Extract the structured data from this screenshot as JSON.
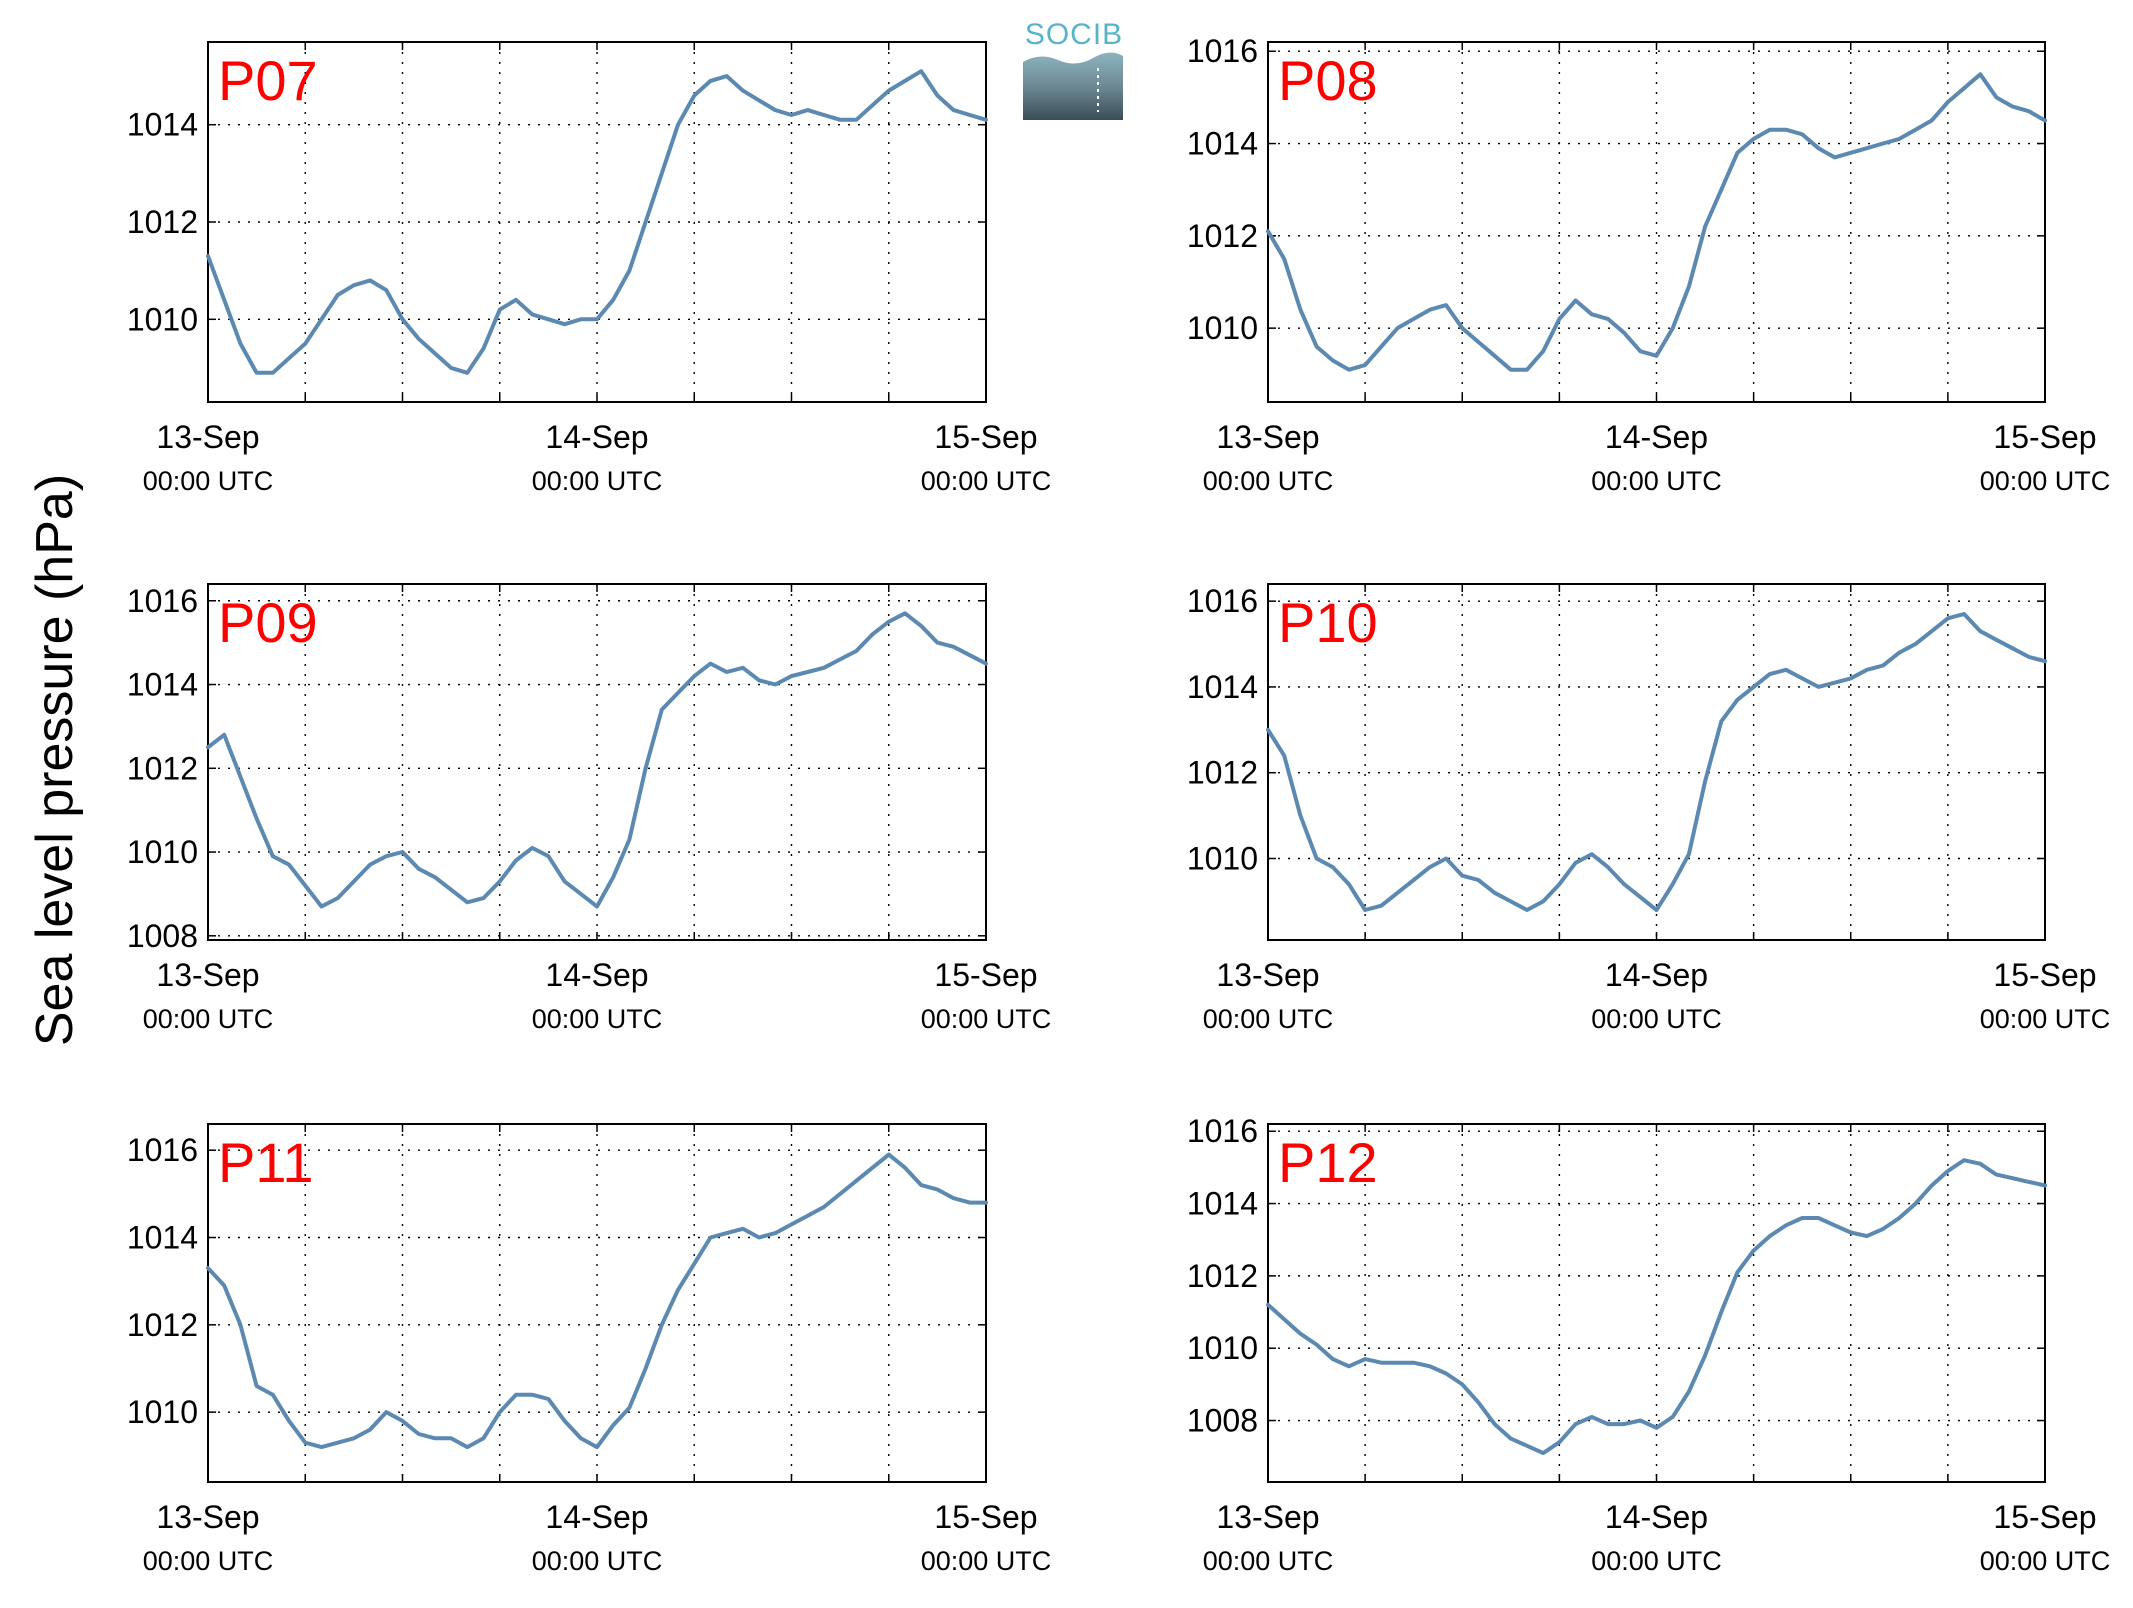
{
  "figure": {
    "ylabel": "Sea level pressure (hPa)",
    "logo_text": "SOCIB",
    "line_color": "#5b89b1",
    "station_label_color": "#ff0000",
    "grid": "dotted"
  },
  "chart_data": [
    {
      "type": "line",
      "station": "P07",
      "ylabel": "Sea level pressure (hPa)",
      "ylim": [
        1008.3,
        1015.7
      ],
      "yticks": [
        1010,
        1012,
        1014
      ],
      "xticks": [
        {
          "x": 0,
          "date": "13-Sep",
          "time": "00:00 UTC"
        },
        {
          "x": 24,
          "date": "14-Sep",
          "time": "00:00 UTC"
        },
        {
          "x": 48,
          "date": "15-Sep",
          "time": "00:00 UTC"
        }
      ],
      "xlim": [
        0,
        48
      ],
      "series": [
        {
          "x": [
            0,
            1,
            2,
            3,
            4,
            5,
            6,
            7,
            8,
            9,
            10,
            11,
            12,
            13,
            14,
            15,
            16,
            17,
            18,
            19,
            20,
            21,
            22,
            23,
            24,
            25,
            26,
            27,
            28,
            29,
            30,
            31,
            32,
            33,
            34,
            35,
            36,
            37,
            38,
            39,
            40,
            41,
            42,
            43,
            44,
            45,
            46,
            47,
            48
          ],
          "y": [
            1011.3,
            1010.4,
            1009.5,
            1008.9,
            1008.9,
            1009.2,
            1009.5,
            1010,
            1010.5,
            1010.7,
            1010.8,
            1010.6,
            1010,
            1009.6,
            1009.3,
            1009.0,
            1008.9,
            1009.4,
            1010.2,
            1010.4,
            1010.1,
            1010.0,
            1009.9,
            1010.0,
            1010.0,
            1010.4,
            1011.0,
            1012.0,
            1013.0,
            1014.0,
            1014.6,
            1014.9,
            1015.0,
            1014.7,
            1014.5,
            1014.3,
            1014.2,
            1014.3,
            1014.2,
            1014.1,
            1014.1,
            1014.4,
            1014.7,
            1014.9,
            1015.1,
            1014.6,
            1014.3,
            1014.2,
            1014.1
          ]
        }
      ]
    },
    {
      "type": "line",
      "station": "P08",
      "ylabel": "Sea level pressure (hPa)",
      "ylim": [
        1008.4,
        1016.2
      ],
      "yticks": [
        1010,
        1012,
        1014,
        1016
      ],
      "xticks": [
        {
          "x": 0,
          "date": "13-Sep",
          "time": "00:00 UTC"
        },
        {
          "x": 24,
          "date": "14-Sep",
          "time": "00:00 UTC"
        },
        {
          "x": 48,
          "date": "15-Sep",
          "time": "00:00 UTC"
        }
      ],
      "xlim": [
        0,
        48
      ],
      "series": [
        {
          "x": [
            0,
            1,
            2,
            3,
            4,
            5,
            6,
            7,
            8,
            9,
            10,
            11,
            12,
            13,
            14,
            15,
            16,
            17,
            18,
            19,
            20,
            21,
            22,
            23,
            24,
            25,
            26,
            27,
            28,
            29,
            30,
            31,
            32,
            33,
            34,
            35,
            36,
            37,
            38,
            39,
            40,
            41,
            42,
            43,
            44,
            45,
            46,
            47,
            48
          ],
          "y": [
            1012.1,
            1011.5,
            1010.4,
            1009.6,
            1009.3,
            1009.1,
            1009.2,
            1009.6,
            1010.0,
            1010.2,
            1010.4,
            1010.5,
            1010.0,
            1009.7,
            1009.4,
            1009.1,
            1009.1,
            1009.5,
            1010.2,
            1010.6,
            1010.3,
            1010.2,
            1009.9,
            1009.5,
            1009.4,
            1010.0,
            1010.9,
            1012.2,
            1013.0,
            1013.8,
            1014.1,
            1014.3,
            1014.3,
            1014.2,
            1013.9,
            1013.7,
            1013.8,
            1013.9,
            1014.0,
            1014.1,
            1014.3,
            1014.5,
            1014.9,
            1015.2,
            1015.5,
            1015.0,
            1014.8,
            1014.7,
            1014.5
          ]
        }
      ]
    },
    {
      "type": "line",
      "station": "P09",
      "ylabel": "Sea level pressure (hPa)",
      "ylim": [
        1007.9,
        1016.4
      ],
      "yticks": [
        1008,
        1010,
        1012,
        1014,
        1016
      ],
      "xticks": [
        {
          "x": 0,
          "date": "13-Sep",
          "time": "00:00 UTC"
        },
        {
          "x": 24,
          "date": "14-Sep",
          "time": "00:00 UTC"
        },
        {
          "x": 48,
          "date": "15-Sep",
          "time": "00:00 UTC"
        }
      ],
      "xlim": [
        0,
        48
      ],
      "series": [
        {
          "x": [
            0,
            1,
            2,
            3,
            4,
            5,
            6,
            7,
            8,
            9,
            10,
            11,
            12,
            13,
            14,
            15,
            16,
            17,
            18,
            19,
            20,
            21,
            22,
            23,
            24,
            25,
            26,
            27,
            28,
            29,
            30,
            31,
            32,
            33,
            34,
            35,
            36,
            37,
            38,
            39,
            40,
            41,
            42,
            43,
            44,
            45,
            46,
            47,
            48
          ],
          "y": [
            1012.5,
            1012.8,
            1011.8,
            1010.8,
            1009.9,
            1009.7,
            1009.2,
            1008.7,
            1008.9,
            1009.3,
            1009.7,
            1009.9,
            1010.0,
            1009.6,
            1009.4,
            1009.1,
            1008.8,
            1008.9,
            1009.3,
            1009.8,
            1010.1,
            1009.9,
            1009.3,
            1009.0,
            1008.7,
            1009.4,
            1010.3,
            1012.0,
            1013.4,
            1013.8,
            1014.2,
            1014.5,
            1014.3,
            1014.4,
            1014.1,
            1014.0,
            1014.2,
            1014.3,
            1014.4,
            1014.6,
            1014.8,
            1015.2,
            1015.5,
            1015.7,
            1015.4,
            1015.0,
            1014.9,
            1014.7,
            1014.5
          ]
        }
      ]
    },
    {
      "type": "line",
      "station": "P10",
      "ylabel": "Sea level pressure (hPa)",
      "ylim": [
        1008.1,
        1016.4
      ],
      "yticks": [
        1010,
        1012,
        1014,
        1016
      ],
      "xticks": [
        {
          "x": 0,
          "date": "13-Sep",
          "time": "00:00 UTC"
        },
        {
          "x": 24,
          "date": "14-Sep",
          "time": "00:00 UTC"
        },
        {
          "x": 48,
          "date": "15-Sep",
          "time": "00:00 UTC"
        }
      ],
      "xlim": [
        0,
        48
      ],
      "series": [
        {
          "x": [
            0,
            1,
            2,
            3,
            4,
            5,
            6,
            7,
            8,
            9,
            10,
            11,
            12,
            13,
            14,
            15,
            16,
            17,
            18,
            19,
            20,
            21,
            22,
            23,
            24,
            25,
            26,
            27,
            28,
            29,
            30,
            31,
            32,
            33,
            34,
            35,
            36,
            37,
            38,
            39,
            40,
            41,
            42,
            43,
            44,
            45,
            46,
            47,
            48
          ],
          "y": [
            1013.0,
            1012.4,
            1011.0,
            1010.0,
            1009.8,
            1009.4,
            1008.8,
            1008.9,
            1009.2,
            1009.5,
            1009.8,
            1010.0,
            1009.6,
            1009.5,
            1009.2,
            1009.0,
            1008.8,
            1009.0,
            1009.4,
            1009.9,
            1010.1,
            1009.8,
            1009.4,
            1009.1,
            1008.8,
            1009.4,
            1010.1,
            1011.8,
            1013.2,
            1013.7,
            1014.0,
            1014.3,
            1014.4,
            1014.2,
            1014.0,
            1014.1,
            1014.2,
            1014.4,
            1014.5,
            1014.8,
            1015.0,
            1015.3,
            1015.6,
            1015.7,
            1015.3,
            1015.1,
            1014.9,
            1014.7,
            1014.6
          ]
        }
      ]
    },
    {
      "type": "line",
      "station": "P11",
      "ylabel": "Sea level pressure (hPa)",
      "ylim": [
        1008.4,
        1016.6
      ],
      "yticks": [
        1010,
        1012,
        1014,
        1016
      ],
      "xticks": [
        {
          "x": 0,
          "date": "13-Sep",
          "time": "00:00 UTC"
        },
        {
          "x": 24,
          "date": "14-Sep",
          "time": "00:00 UTC"
        },
        {
          "x": 48,
          "date": "15-Sep",
          "time": "00:00 UTC"
        }
      ],
      "xlim": [
        0,
        48
      ],
      "series": [
        {
          "x": [
            0,
            1,
            2,
            3,
            4,
            5,
            6,
            7,
            8,
            9,
            10,
            11,
            12,
            13,
            14,
            15,
            16,
            17,
            18,
            19,
            20,
            21,
            22,
            23,
            24,
            25,
            26,
            27,
            28,
            29,
            30,
            31,
            32,
            33,
            34,
            35,
            36,
            37,
            38,
            39,
            40,
            41,
            42,
            43,
            44,
            45,
            46,
            47,
            48
          ],
          "y": [
            1013.3,
            1012.9,
            1012.0,
            1010.6,
            1010.4,
            1009.8,
            1009.3,
            1009.2,
            1009.3,
            1009.4,
            1009.6,
            1010.0,
            1009.8,
            1009.5,
            1009.4,
            1009.4,
            1009.2,
            1009.4,
            1010.0,
            1010.4,
            1010.4,
            1010.3,
            1009.8,
            1009.4,
            1009.2,
            1009.7,
            1010.1,
            1011.0,
            1012.0,
            1012.8,
            1013.4,
            1014.0,
            1014.1,
            1014.2,
            1014.0,
            1014.1,
            1014.3,
            1014.5,
            1014.7,
            1015.0,
            1015.3,
            1015.6,
            1015.9,
            1015.6,
            1015.2,
            1015.1,
            1014.9,
            1014.8,
            1014.8
          ]
        }
      ]
    },
    {
      "type": "line",
      "station": "P12",
      "ylabel": "Sea level pressure (hPa)",
      "ylim": [
        1006.3,
        1016.2
      ],
      "yticks": [
        1008,
        1010,
        1012,
        1014,
        1016
      ],
      "xticks": [
        {
          "x": 0,
          "date": "13-Sep",
          "time": "00:00 UTC"
        },
        {
          "x": 24,
          "date": "14-Sep",
          "time": "00:00 UTC"
        },
        {
          "x": 48,
          "date": "15-Sep",
          "time": "00:00 UTC"
        }
      ],
      "xlim": [
        0,
        48
      ],
      "series": [
        {
          "x": [
            0,
            1,
            2,
            3,
            4,
            5,
            6,
            7,
            8,
            9,
            10,
            11,
            12,
            13,
            14,
            15,
            16,
            17,
            18,
            19,
            20,
            21,
            22,
            23,
            24,
            25,
            26,
            27,
            28,
            29,
            30,
            31,
            32,
            33,
            34,
            35,
            36,
            37,
            38,
            39,
            40,
            41,
            42,
            43,
            44,
            45,
            46,
            47,
            48
          ],
          "y": [
            1011.2,
            1010.8,
            1010.4,
            1010.1,
            1009.7,
            1009.5,
            1009.7,
            1009.6,
            1009.6,
            1009.6,
            1009.5,
            1009.3,
            1009.0,
            1008.5,
            1007.9,
            1007.5,
            1007.3,
            1007.1,
            1007.4,
            1007.9,
            1008.1,
            1007.9,
            1007.9,
            1008.0,
            1007.8,
            1008.1,
            1008.8,
            1009.8,
            1011.0,
            1012.1,
            1012.7,
            1013.1,
            1013.4,
            1013.6,
            1013.6,
            1013.4,
            1013.2,
            1013.1,
            1013.3,
            1013.6,
            1014.0,
            1014.5,
            1014.9,
            1015.2,
            1015.1,
            1014.8,
            1014.7,
            1014.6,
            1014.5
          ]
        }
      ]
    }
  ]
}
